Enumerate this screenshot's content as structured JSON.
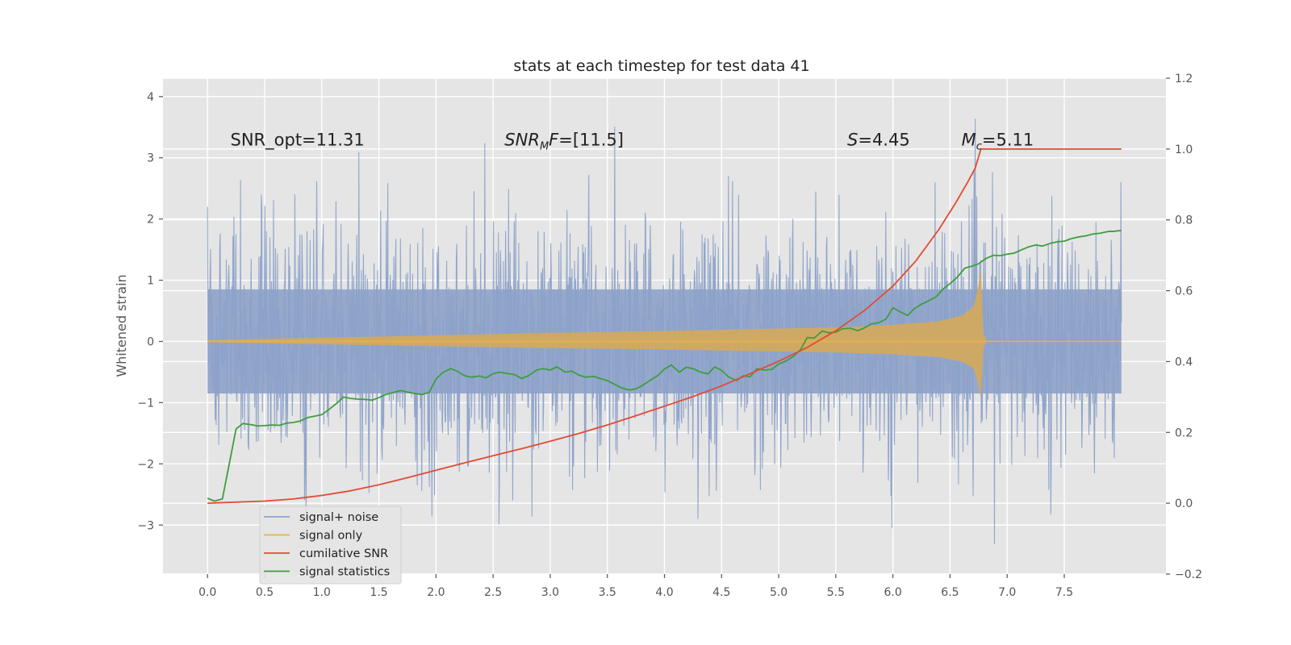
{
  "chart_data": {
    "type": "line",
    "title": "stats at each timestep for test data 41",
    "xlabel": "",
    "ylabel": "Whitened strain",
    "ylabel_right": "",
    "xlim": [
      -0.39,
      8.39
    ],
    "ylim": [
      -3.8,
      4.3
    ],
    "ylim_right": [
      -0.2,
      1.2
    ],
    "x_ticks": [
      0.0,
      0.5,
      1.0,
      1.5,
      2.0,
      2.5,
      3.0,
      3.5,
      4.0,
      4.5,
      5.0,
      5.5,
      6.0,
      6.5,
      7.0,
      7.5
    ],
    "x_tick_labels": [
      "0.0",
      "0.5",
      "1.0",
      "1.5",
      "2.0",
      "2.5",
      "3.0",
      "3.5",
      "4.0",
      "4.5",
      "5.0",
      "5.5",
      "6.0",
      "6.5",
      "7.0",
      "7.5"
    ],
    "y_ticks": [
      -3,
      -2,
      -1,
      0,
      1,
      2,
      3,
      4
    ],
    "y_tick_labels": [
      "−3",
      "−2",
      "−1",
      "0",
      "1",
      "2",
      "3",
      "4"
    ],
    "y_right_ticks": [
      -0.2,
      0.0,
      0.2,
      0.4,
      0.6,
      0.8,
      1.0,
      1.2
    ],
    "y_right_tick_labels": [
      "−0.2",
      "0.0",
      "0.2",
      "0.4",
      "0.6",
      "0.8",
      "1.0",
      "1.2"
    ],
    "grid": true,
    "legend_position": "lower-left",
    "annotations": [
      {
        "text": "SNR_opt=11.31",
        "x": 0.2,
        "y": 3.2
      },
      {
        "pre": "SNR",
        "sub": "M",
        "post": "F=[11.5]",
        "x": 2.6,
        "y": 3.2
      },
      {
        "pre": "S",
        "sub": "",
        "post": "=4.45",
        "x": 5.6,
        "y": 3.2
      },
      {
        "pre": "M",
        "sub": "c",
        "post": "=5.11",
        "x": 6.6,
        "y": 3.2
      }
    ],
    "series": [
      {
        "name": "signal+ noise",
        "axis": "left",
        "color": "#8da2c9",
        "kind": "noise",
        "x_range": [
          0.0,
          8.0
        ],
        "upper_envelope_x": [
          0,
          1,
          2,
          3,
          4,
          5,
          6,
          6.5,
          7,
          8
        ],
        "upper_envelope_y": [
          2.2,
          2.3,
          2.3,
          2.3,
          2.3,
          2.4,
          2.5,
          2.6,
          2.3,
          2.3
        ],
        "lower_envelope_y": [
          -2.0,
          -2.0,
          -2.0,
          -2.0,
          -2.0,
          -2.1,
          -2.2,
          -2.3,
          -2.0,
          -2.0
        ]
      },
      {
        "name": "signal only",
        "axis": "left",
        "color": "#e8b04a",
        "kind": "chirp",
        "amplitude_t": [
          0.0,
          1.0,
          2.0,
          3.0,
          4.0,
          5.0,
          5.5,
          6.0,
          6.4,
          6.6,
          6.7,
          6.74,
          6.77
        ],
        "amplitude": [
          0.02,
          0.06,
          0.1,
          0.14,
          0.17,
          0.21,
          0.23,
          0.27,
          0.33,
          0.42,
          0.55,
          0.8,
          1.2
        ],
        "merger_time": 6.77
      },
      {
        "name": "cumilative SNR",
        "axis": "right",
        "color": "#e24a33",
        "x": [
          0.0,
          0.25,
          0.5,
          0.75,
          1.0,
          1.25,
          1.5,
          1.75,
          2.0,
          2.25,
          2.5,
          2.75,
          3.0,
          3.25,
          3.5,
          3.75,
          4.0,
          4.25,
          4.5,
          4.75,
          5.0,
          5.25,
          5.5,
          5.75,
          6.0,
          6.2,
          6.4,
          6.55,
          6.65,
          6.72,
          6.75,
          6.77,
          7.0,
          7.5,
          8.0
        ],
        "y": [
          0.0,
          0.003,
          0.006,
          0.012,
          0.022,
          0.035,
          0.052,
          0.072,
          0.093,
          0.114,
          0.134,
          0.154,
          0.175,
          0.197,
          0.221,
          0.247,
          0.274,
          0.301,
          0.331,
          0.366,
          0.401,
          0.44,
          0.487,
          0.544,
          0.613,
          0.684,
          0.772,
          0.848,
          0.904,
          0.946,
          0.978,
          1.0,
          1.0,
          1.0,
          1.0
        ]
      },
      {
        "name": "signal statistics",
        "axis": "right",
        "color": "#3d9e3d",
        "x": [
          0.0,
          0.06,
          0.13,
          0.25,
          0.31,
          0.38,
          0.44,
          0.5,
          0.56,
          0.63,
          0.69,
          0.75,
          0.81,
          0.88,
          0.94,
          1.0,
          1.06,
          1.13,
          1.19,
          1.25,
          1.31,
          1.38,
          1.44,
          1.5,
          1.56,
          1.63,
          1.69,
          1.75,
          1.81,
          1.88,
          1.94,
          2.0,
          2.06,
          2.13,
          2.19,
          2.25,
          2.31,
          2.38,
          2.44,
          2.5,
          2.56,
          2.63,
          2.69,
          2.75,
          2.81,
          2.88,
          2.94,
          3.0,
          3.06,
          3.13,
          3.19,
          3.25,
          3.31,
          3.38,
          3.44,
          3.5,
          3.56,
          3.63,
          3.69,
          3.75,
          3.81,
          3.88,
          3.94,
          4.0,
          4.06,
          4.13,
          4.19,
          4.25,
          4.31,
          4.38,
          4.44,
          4.5,
          4.56,
          4.63,
          4.69,
          4.75,
          4.81,
          4.88,
          4.94,
          5.0,
          5.06,
          5.13,
          5.19,
          5.25,
          5.31,
          5.38,
          5.44,
          5.5,
          5.56,
          5.63,
          5.69,
          5.75,
          5.81,
          5.88,
          5.94,
          6.0,
          6.06,
          6.13,
          6.19,
          6.25,
          6.31,
          6.38,
          6.44,
          6.5,
          6.56,
          6.63,
          6.69,
          6.75,
          6.81,
          6.88,
          6.94,
          7.0,
          7.06,
          7.13,
          7.19,
          7.25,
          7.31,
          7.38,
          7.44,
          7.5,
          7.56,
          7.63,
          7.69,
          7.75,
          7.81,
          7.88,
          7.94,
          8.0
        ],
        "y": [
          0.014,
          0.006,
          0.012,
          0.21,
          0.225,
          0.222,
          0.218,
          0.219,
          0.221,
          0.22,
          0.226,
          0.228,
          0.232,
          0.242,
          0.246,
          0.25,
          0.264,
          0.282,
          0.3,
          0.296,
          0.294,
          0.293,
          0.291,
          0.298,
          0.307,
          0.313,
          0.318,
          0.314,
          0.31,
          0.307,
          0.313,
          0.351,
          0.369,
          0.38,
          0.372,
          0.36,
          0.356,
          0.359,
          0.354,
          0.366,
          0.37,
          0.366,
          0.363,
          0.352,
          0.36,
          0.376,
          0.38,
          0.376,
          0.385,
          0.37,
          0.373,
          0.362,
          0.356,
          0.358,
          0.352,
          0.346,
          0.336,
          0.325,
          0.32,
          0.323,
          0.333,
          0.348,
          0.36,
          0.379,
          0.39,
          0.37,
          0.384,
          0.38,
          0.371,
          0.365,
          0.385,
          0.375,
          0.357,
          0.346,
          0.36,
          0.357,
          0.38,
          0.376,
          0.378,
          0.393,
          0.401,
          0.415,
          0.433,
          0.468,
          0.466,
          0.486,
          0.481,
          0.483,
          0.493,
          0.494,
          0.487,
          0.495,
          0.506,
          0.51,
          0.52,
          0.552,
          0.541,
          0.53,
          0.55,
          0.562,
          0.571,
          0.583,
          0.605,
          0.62,
          0.637,
          0.664,
          0.669,
          0.676,
          0.69,
          0.7,
          0.699,
          0.703,
          0.706,
          0.716,
          0.724,
          0.729,
          0.726,
          0.734,
          0.738,
          0.74,
          0.747,
          0.752,
          0.755,
          0.76,
          0.762,
          0.767,
          0.768,
          0.77
        ]
      }
    ]
  }
}
